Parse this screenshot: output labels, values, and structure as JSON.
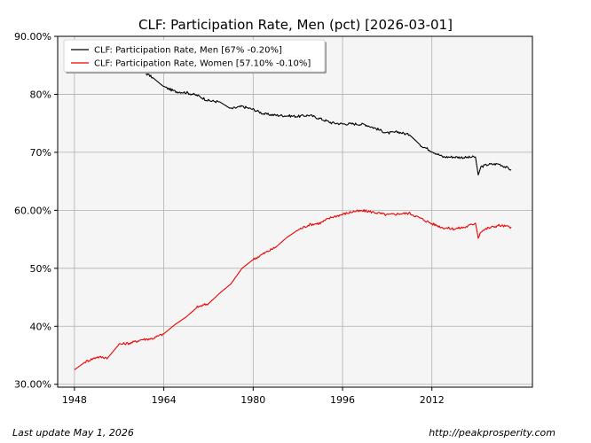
{
  "chart_data": {
    "type": "line",
    "title": "CLF: Participation Rate, Men (pct) [2026-03-01]",
    "xlabel": "",
    "ylabel": "",
    "xlim": [
      1945,
      2030
    ],
    "ylim": [
      29.5,
      90
    ],
    "x_ticks": [
      1948,
      1964,
      1980,
      1996,
      2012
    ],
    "y_ticks": [
      {
        "value": 30,
        "label": "30.00%"
      },
      {
        "value": 40,
        "label": "40%"
      },
      {
        "value": 50,
        "label": "50%"
      },
      {
        "value": 60,
        "label": "60.00%"
      },
      {
        "value": 70,
        "label": "70%"
      },
      {
        "value": 80,
        "label": "80%"
      },
      {
        "value": 90,
        "label": "90.00%"
      }
    ],
    "grid": true,
    "legend_position": "top-left",
    "series": [
      {
        "name": "CLF: Participation Rate, Men [67% -0.20%]",
        "color": "#000000",
        "x": [
          1948,
          1950,
          1952,
          1954,
          1956,
          1958,
          1960,
          1962,
          1964,
          1966,
          1968,
          1970,
          1972,
          1974,
          1976,
          1978,
          1980,
          1982,
          1984,
          1986,
          1988,
          1990,
          1992,
          1994,
          1996,
          1998,
          2000,
          2002,
          2004,
          2006,
          2008,
          2010,
          2012,
          2014,
          2016,
          2018,
          2019.8,
          2020.3,
          2020.8,
          2022,
          2024,
          2026.2
        ],
        "y": [
          87,
          86.6,
          86.6,
          86.1,
          86,
          84.9,
          84.1,
          82.9,
          81.3,
          80.5,
          80.3,
          79.8,
          78.9,
          78.7,
          77.5,
          77.9,
          77.4,
          76.6,
          76.4,
          76.3,
          76.2,
          76.4,
          75.8,
          75.1,
          74.9,
          74.9,
          74.8,
          74.1,
          73.3,
          73.5,
          73,
          71.2,
          70.2,
          69.2,
          69.2,
          69.1,
          69.2,
          66.1,
          67.5,
          67.9,
          68,
          67
        ]
      },
      {
        "name": "CLF: Participation Rate, Women [57.10% -0.10%]",
        "color": "#ee0000",
        "x": [
          1948,
          1950,
          1952,
          1954,
          1956,
          1958,
          1960,
          1962,
          1964,
          1966,
          1968,
          1970,
          1972,
          1974,
          1976,
          1978,
          1980,
          1982,
          1984,
          1986,
          1988,
          1990,
          1992,
          1994,
          1996,
          1998,
          2000,
          2002,
          2004,
          2006,
          2008,
          2010,
          2012,
          2014,
          2016,
          2018,
          2019.8,
          2020.3,
          2020.8,
          2022,
          2024,
          2026.2
        ],
        "y": [
          32.5,
          33.9,
          34.7,
          34.6,
          36.9,
          37.1,
          37.7,
          37.9,
          38.7,
          40.3,
          41.6,
          43.3,
          43.9,
          45.7,
          47.3,
          50,
          51.5,
          52.6,
          53.6,
          55.3,
          56.6,
          57.5,
          57.8,
          58.8,
          59.3,
          59.8,
          59.9,
          59.6,
          59.2,
          59.4,
          59.5,
          58.6,
          57.7,
          57,
          56.8,
          57.1,
          57.8,
          55.3,
          56.4,
          56.9,
          57.4,
          57.1
        ]
      }
    ]
  },
  "footer": {
    "last_update": "Last update May  1, 2026",
    "source": "http://peakprosperity.com"
  }
}
